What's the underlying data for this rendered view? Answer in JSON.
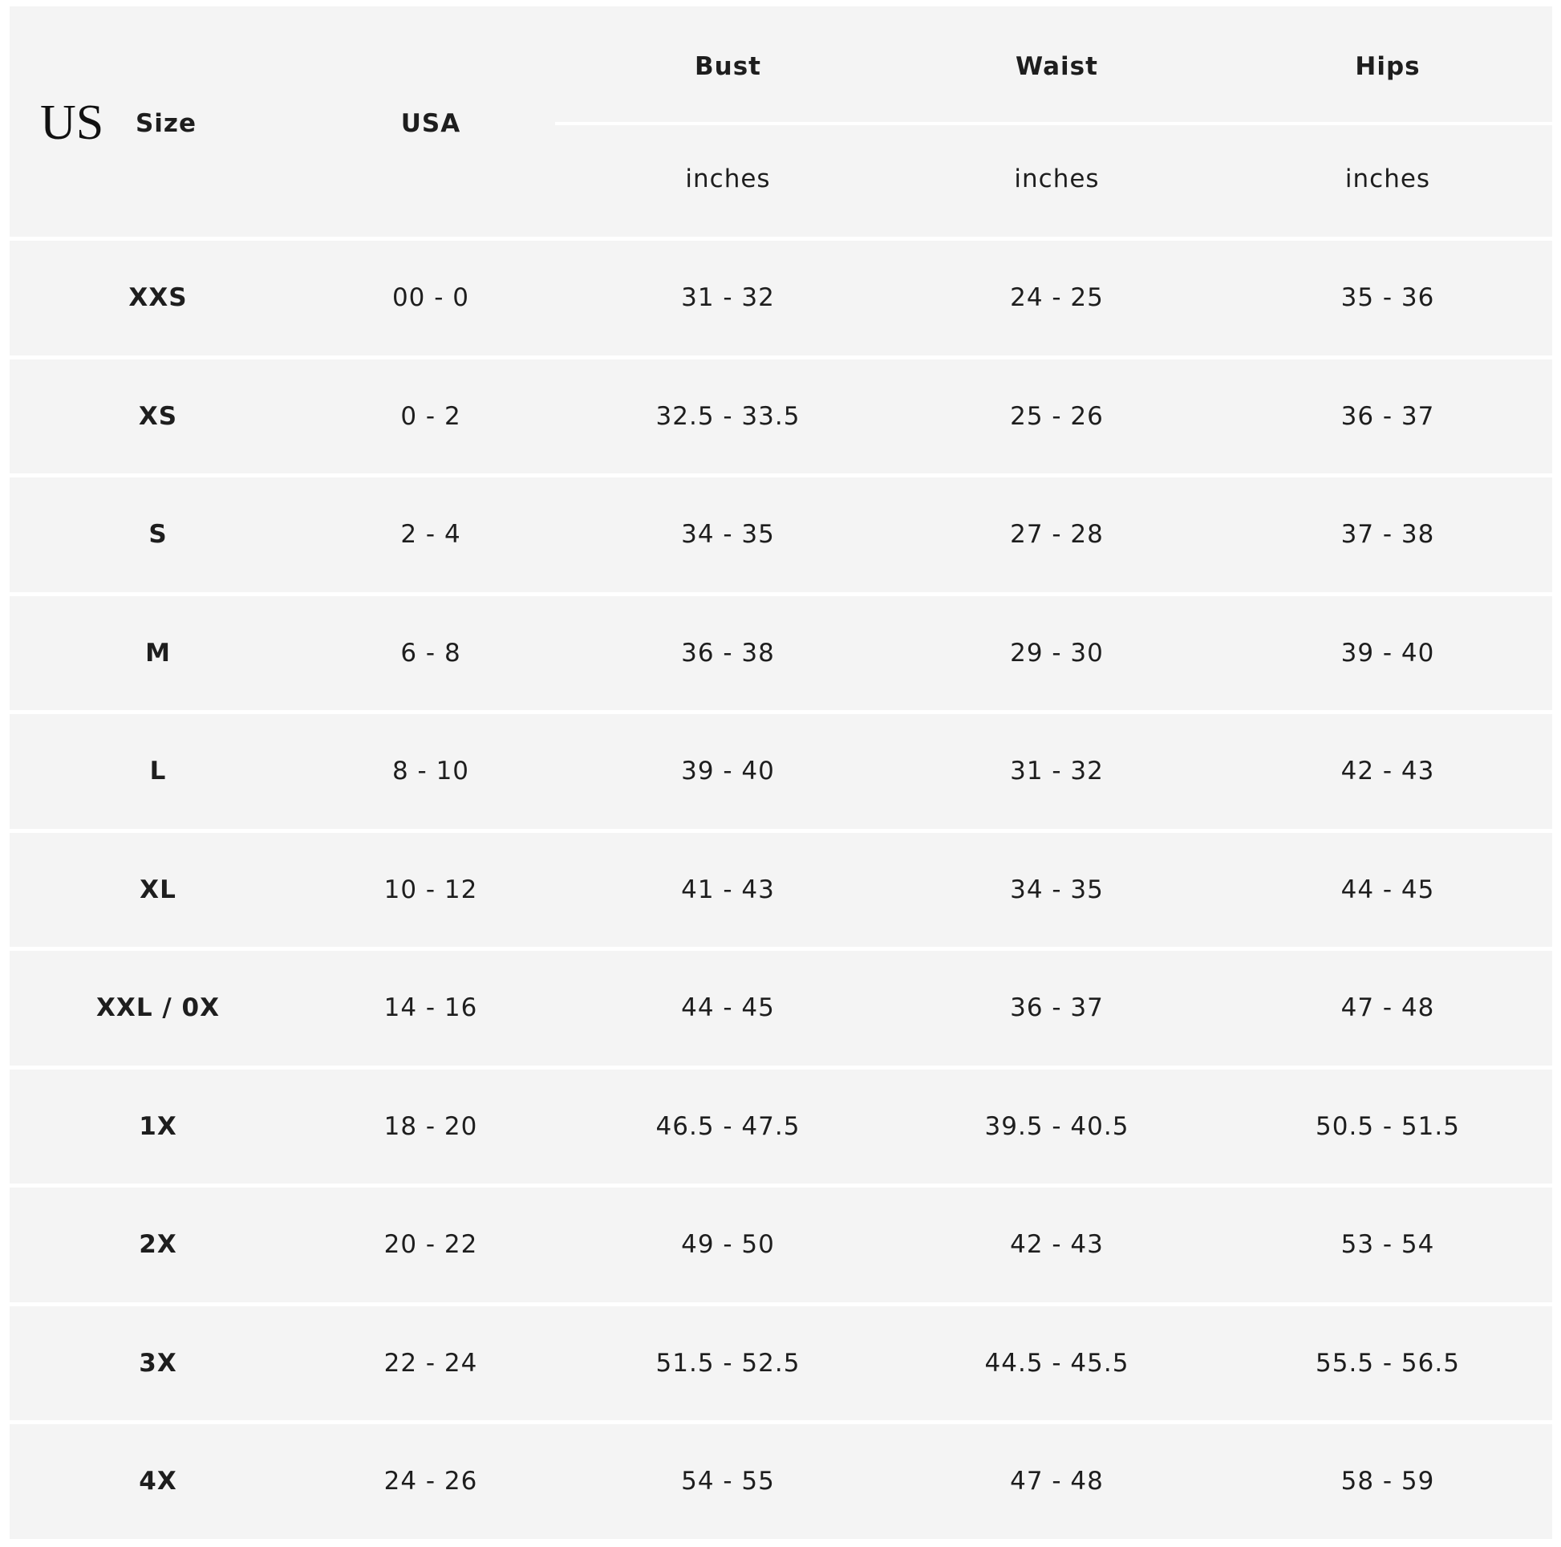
{
  "header": {
    "region_label": "US",
    "size_label": "Size",
    "usa_label": "USA",
    "measurements": [
      {
        "label": "Bust",
        "unit": "inches"
      },
      {
        "label": "Waist",
        "unit": "inches"
      },
      {
        "label": "Hips",
        "unit": "inches"
      }
    ]
  },
  "rows": [
    {
      "size": "XXS",
      "usa": "00 - 0",
      "bust": "31 - 32",
      "waist": "24 - 25",
      "hips": "35 - 36"
    },
    {
      "size": "XS",
      "usa": "0 - 2",
      "bust": "32.5 - 33.5",
      "waist": "25 - 26",
      "hips": "36 - 37"
    },
    {
      "size": "S",
      "usa": "2 - 4",
      "bust": "34 - 35",
      "waist": "27 - 28",
      "hips": "37 - 38"
    },
    {
      "size": "M",
      "usa": "6 - 8",
      "bust": "36 - 38",
      "waist": "29 - 30",
      "hips": "39 - 40"
    },
    {
      "size": "L",
      "usa": "8 - 10",
      "bust": "39 - 40",
      "waist": "31 - 32",
      "hips": "42 - 43"
    },
    {
      "size": "XL",
      "usa": "10 - 12",
      "bust": "41 - 43",
      "waist": "34 - 35",
      "hips": "44 - 45"
    },
    {
      "size": "XXL / 0X",
      "usa": "14 - 16",
      "bust": "44 - 45",
      "waist": "36 - 37",
      "hips": "47 - 48"
    },
    {
      "size": "1X",
      "usa": "18 - 20",
      "bust": "46.5 - 47.5",
      "waist": "39.5 - 40.5",
      "hips": "50.5 - 51.5"
    },
    {
      "size": "2X",
      "usa": "20 - 22",
      "bust": "49 - 50",
      "waist": "42 - 43",
      "hips": "53 - 54"
    },
    {
      "size": "3X",
      "usa": "22 - 24",
      "bust": "51.5 - 52.5",
      "waist": "44.5 - 45.5",
      "hips": "55.5 - 56.5"
    },
    {
      "size": "4X",
      "usa": "24 - 26",
      "bust": "54 - 55",
      "waist": "47 - 48",
      "hips": "58 - 59"
    }
  ]
}
